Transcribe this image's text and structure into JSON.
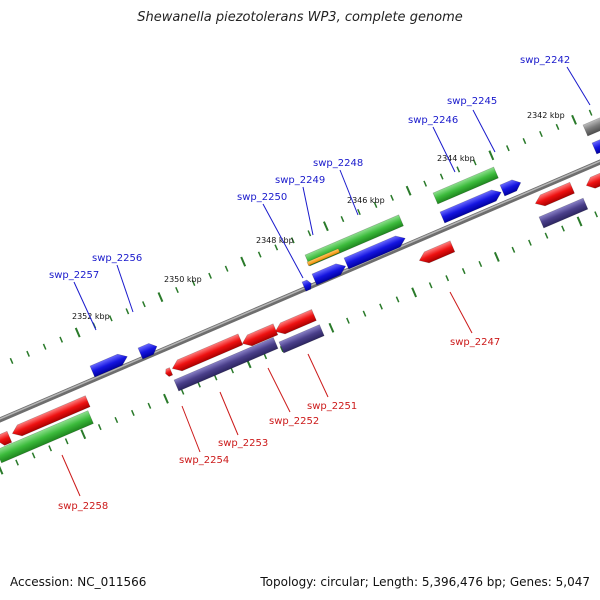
{
  "title": "Shewanella piezotolerans WP3, complete genome",
  "footer": {
    "accession": "Accession: NC_011566",
    "topology": "Topology: circular; Length: 5,396,476 bp; Genes: 5,047"
  },
  "kbp_labels": [
    "2342 kbp",
    "2344 kbp",
    "2346 kbp",
    "2348 kbp",
    "2350 kbp",
    "2352 kbp"
  ],
  "gene_labels_forward": [
    "swp_2242",
    "swp_2245",
    "swp_2246",
    "swp_2248",
    "swp_2249",
    "swp_2250",
    "swp_2256",
    "swp_2257"
  ],
  "gene_labels_reverse": [
    "swp_2247",
    "swp_2251",
    "swp_2252",
    "swp_2253",
    "swp_2254",
    "swp_2258"
  ],
  "colors": {
    "backbone": "#808080",
    "forward_cds": "#1010e0",
    "reverse_cds": "#e01010",
    "rna": "#33bb33",
    "rna_alt": "#ff9900",
    "pseudo": "#4a3f8a",
    "tick": "#2a7a2a",
    "forward_label": "#1a1acc",
    "reverse_label": "#cc1a1a"
  }
}
